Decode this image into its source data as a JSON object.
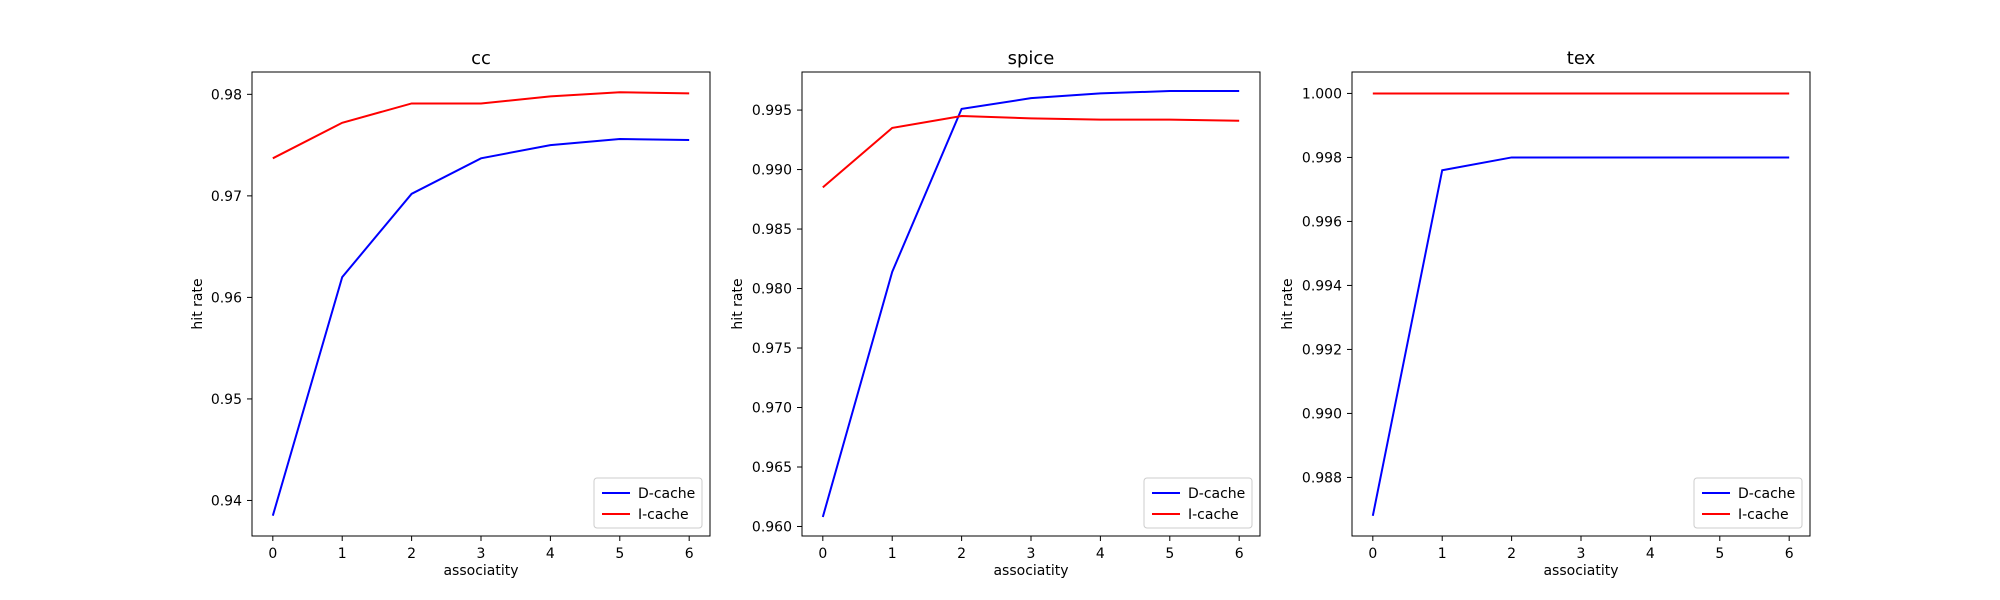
{
  "chart_data": [
    {
      "type": "line",
      "title": "cc",
      "xlabel": "associatity",
      "ylabel": "hit rate",
      "x": [
        0,
        1,
        2,
        3,
        4,
        5,
        6
      ],
      "xlim": [
        -0.3,
        6.3
      ],
      "ylim": [
        0.9365,
        0.9822
      ],
      "yticks": [
        0.94,
        0.95,
        0.96,
        0.97,
        0.98
      ],
      "ytick_labels": [
        "0.94",
        "0.95",
        "0.96",
        "0.97",
        "0.98"
      ],
      "series": [
        {
          "name": "D-cache",
          "color": "#0000ff",
          "values": [
            0.9385,
            0.962,
            0.9702,
            0.9737,
            0.975,
            0.9756,
            0.9755
          ]
        },
        {
          "name": "I-cache",
          "color": "#ff0000",
          "values": [
            0.9737,
            0.9772,
            0.9791,
            0.9791,
            0.9798,
            0.9802,
            0.9801
          ]
        }
      ],
      "legend": "lower-right",
      "grid": false
    },
    {
      "type": "line",
      "title": "spice",
      "xlabel": "associatity",
      "ylabel": "hit rate",
      "x": [
        0,
        1,
        2,
        3,
        4,
        5,
        6
      ],
      "xlim": [
        -0.3,
        6.3
      ],
      "ylim": [
        0.9592,
        0.9982
      ],
      "yticks": [
        0.96,
        0.965,
        0.97,
        0.975,
        0.98,
        0.985,
        0.99,
        0.995
      ],
      "ytick_labels": [
        "0.960",
        "0.965",
        "0.970",
        "0.975",
        "0.980",
        "0.985",
        "0.990",
        "0.995"
      ],
      "series": [
        {
          "name": "D-cache",
          "color": "#0000ff",
          "values": [
            0.9608,
            0.9814,
            0.9951,
            0.996,
            0.9964,
            0.9966,
            0.9966
          ]
        },
        {
          "name": "I-cache",
          "color": "#ff0000",
          "values": [
            0.9885,
            0.9935,
            0.9945,
            0.9943,
            0.9942,
            0.9942,
            0.9941
          ]
        }
      ],
      "legend": "lower-right",
      "grid": false
    },
    {
      "type": "line",
      "title": "tex",
      "xlabel": "associatity",
      "ylabel": "hit rate",
      "x": [
        0,
        1,
        2,
        3,
        4,
        5,
        6
      ],
      "xlim": [
        -0.3,
        6.3
      ],
      "ylim": [
        0.98617,
        1.00067
      ],
      "yticks": [
        0.988,
        0.99,
        0.992,
        0.994,
        0.996,
        0.998,
        1.0
      ],
      "ytick_labels": [
        "0.988",
        "0.990",
        "0.992",
        "0.994",
        "0.996",
        "0.998",
        "1.000"
      ],
      "series": [
        {
          "name": "D-cache",
          "color": "#0000ff",
          "values": [
            0.9868,
            0.9976,
            0.998,
            0.998,
            0.998,
            0.998,
            0.998
          ]
        },
        {
          "name": "I-cache",
          "color": "#ff0000",
          "values": [
            1.0,
            1.0,
            1.0,
            1.0,
            1.0,
            1.0,
            1.0
          ]
        }
      ],
      "legend": "lower-right",
      "grid": false
    }
  ]
}
